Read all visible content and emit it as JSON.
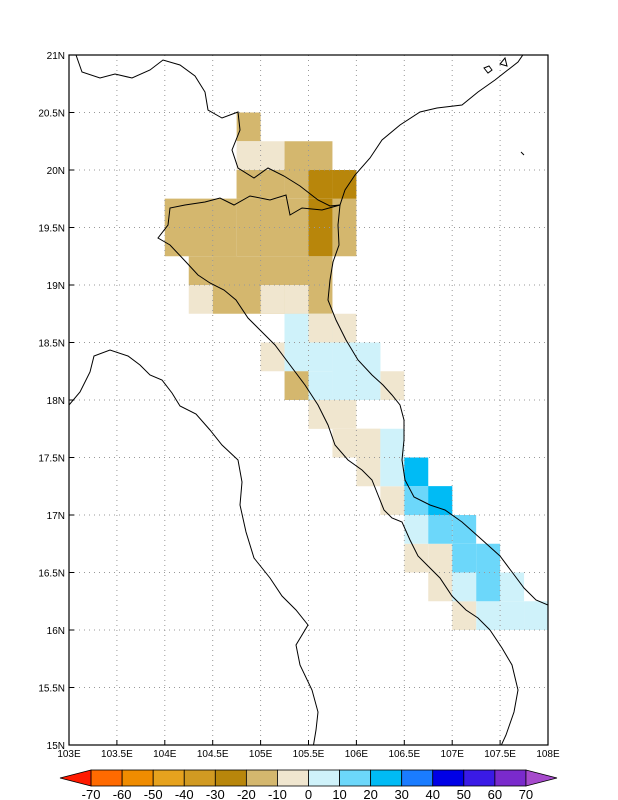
{
  "map": {
    "lon_range": [
      103,
      108
    ],
    "lat_range": [
      15,
      21
    ],
    "grid": true,
    "cell_size_deg": 0.25,
    "x_ticks": [
      "103E",
      "103.5E",
      "104E",
      "104.5E",
      "105E",
      "105.5E",
      "106E",
      "106.5E",
      "107E",
      "107.5E",
      "108E"
    ],
    "y_ticks": [
      "15N",
      "15.5N",
      "16N",
      "16.5N",
      "17N",
      "17.5N",
      "18N",
      "18.5N",
      "19N",
      "19.5N",
      "20N",
      "20.5N",
      "21N"
    ]
  },
  "colorbar": {
    "labels": [
      "-70",
      "-60",
      "-50",
      "-40",
      "-30",
      "-20",
      "-10",
      "0",
      "10",
      "20",
      "30",
      "40",
      "50",
      "60",
      "70"
    ],
    "colors": [
      "#ff1a00",
      "#ff6a00",
      "#f08c00",
      "#e6a21e",
      "#d19a22",
      "#b8860b",
      "#d4b76e",
      "#f0e6cf",
      "#cff2fa",
      "#6cd7fa",
      "#00bbf5",
      "#1a7cff",
      "#0000e6",
      "#3a1ae6",
      "#7a2acc",
      "#a64acc"
    ]
  },
  "chart_data": {
    "type": "heatmap",
    "title": "",
    "x_axis": "longitude (degrees E)",
    "y_axis": "latitude (degrees N)",
    "cells": [
      {
        "lon": 104.875,
        "lat": 20.375,
        "class": "-30to-20"
      },
      {
        "lon": 104.875,
        "lat": 20.125,
        "class": "-10to0"
      },
      {
        "lon": 105.125,
        "lat": 20.125,
        "class": "-10to0"
      },
      {
        "lon": 105.375,
        "lat": 20.125,
        "class": "-30to-20"
      },
      {
        "lon": 105.625,
        "lat": 20.125,
        "class": "-30to-20"
      },
      {
        "lon": 104.375,
        "lat": 19.625,
        "class": "-30to-20"
      },
      {
        "lon": 104.625,
        "lat": 19.625,
        "class": "-30to-20"
      },
      {
        "lon": 104.875,
        "lat": 19.875,
        "class": "-30to-20"
      },
      {
        "lon": 105.125,
        "lat": 19.875,
        "class": "-30to-20"
      },
      {
        "lon": 105.375,
        "lat": 19.875,
        "class": "-30to-20"
      },
      {
        "lon": 105.625,
        "lat": 19.875,
        "class": "-40to-30"
      },
      {
        "lon": 105.875,
        "lat": 19.875,
        "class": "-40to-30"
      },
      {
        "lon": 105.625,
        "lat": 19.625,
        "class": "-40to-30"
      },
      {
        "lon": 105.625,
        "lat": 19.375,
        "class": "-40to-30"
      },
      {
        "lon": 104.375,
        "lat": 18.875,
        "class": "-10to0"
      },
      {
        "lon": 105.125,
        "lat": 18.875,
        "class": "-10to0"
      },
      {
        "lon": 105.375,
        "lat": 18.875,
        "class": "-10to0"
      },
      {
        "lon": 105.375,
        "lat": 18.625,
        "class": "0to10"
      },
      {
        "lon": 105.625,
        "lat": 18.625,
        "class": "-10to0"
      },
      {
        "lon": 105.875,
        "lat": 18.625,
        "class": "-10to0"
      },
      {
        "lon": 105.375,
        "lat": 18.125,
        "class": "-30to-20"
      },
      {
        "lon": 105.625,
        "lat": 17.875,
        "class": "-10to0"
      },
      {
        "lon": 106.125,
        "lat": 17.625,
        "class": "-10to0"
      },
      {
        "lon": 106.375,
        "lat": 17.625,
        "class": "0to10"
      },
      {
        "lon": 106.625,
        "lat": 17.375,
        "class": "20to30"
      },
      {
        "lon": 106.625,
        "lat": 17.125,
        "class": "10to20"
      },
      {
        "lon": 106.875,
        "lat": 17.125,
        "class": "20to30"
      },
      {
        "lon": 106.875,
        "lat": 16.875,
        "class": "10to20"
      },
      {
        "lon": 107.125,
        "lat": 16.875,
        "class": "10to20"
      },
      {
        "lon": 107.375,
        "lat": 16.625,
        "class": "10to20"
      },
      {
        "lon": 107.375,
        "lat": 16.375,
        "class": "10to20"
      },
      {
        "lon": 107.125,
        "lat": 16.625,
        "class": "10to20"
      },
      {
        "lon": 107.125,
        "lat": 16.375,
        "class": "0to10"
      },
      {
        "lon": 107.625,
        "lat": 16.125,
        "class": "0to10"
      },
      {
        "lon": 107.875,
        "lat": 16.125,
        "class": "0to10"
      }
    ]
  }
}
